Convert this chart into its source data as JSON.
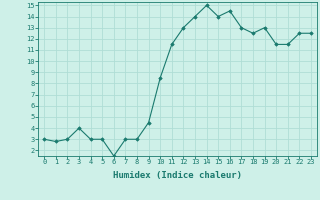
{
  "x": [
    0,
    1,
    2,
    3,
    4,
    5,
    6,
    7,
    8,
    9,
    10,
    11,
    12,
    13,
    14,
    15,
    16,
    17,
    18,
    19,
    20,
    21,
    22,
    23
  ],
  "y": [
    3.0,
    2.8,
    3.0,
    4.0,
    3.0,
    3.0,
    1.5,
    3.0,
    3.0,
    4.5,
    8.5,
    11.5,
    13.0,
    14.0,
    15.0,
    14.0,
    14.5,
    13.0,
    12.5,
    13.0,
    11.5,
    11.5,
    12.5,
    12.5
  ],
  "xlabel": "Humidex (Indice chaleur)",
  "ylim_min": 1.5,
  "ylim_max": 15.3,
  "xlim_min": -0.5,
  "xlim_max": 23.5,
  "yticks": [
    2,
    3,
    4,
    5,
    6,
    7,
    8,
    9,
    10,
    11,
    12,
    13,
    14,
    15
  ],
  "xticks": [
    0,
    1,
    2,
    3,
    4,
    5,
    6,
    7,
    8,
    9,
    10,
    11,
    12,
    13,
    14,
    15,
    16,
    17,
    18,
    19,
    20,
    21,
    22,
    23
  ],
  "line_color": "#1a7a6e",
  "marker_color": "#1a7a6e",
  "bg_color": "#cef0e8",
  "grid_color": "#b0ddd5",
  "xlabel_color": "#1a7a6e",
  "tick_color": "#1a7a6e",
  "spine_color": "#1a7a6e",
  "tick_fontsize": 5.0,
  "xlabel_fontsize": 6.5
}
